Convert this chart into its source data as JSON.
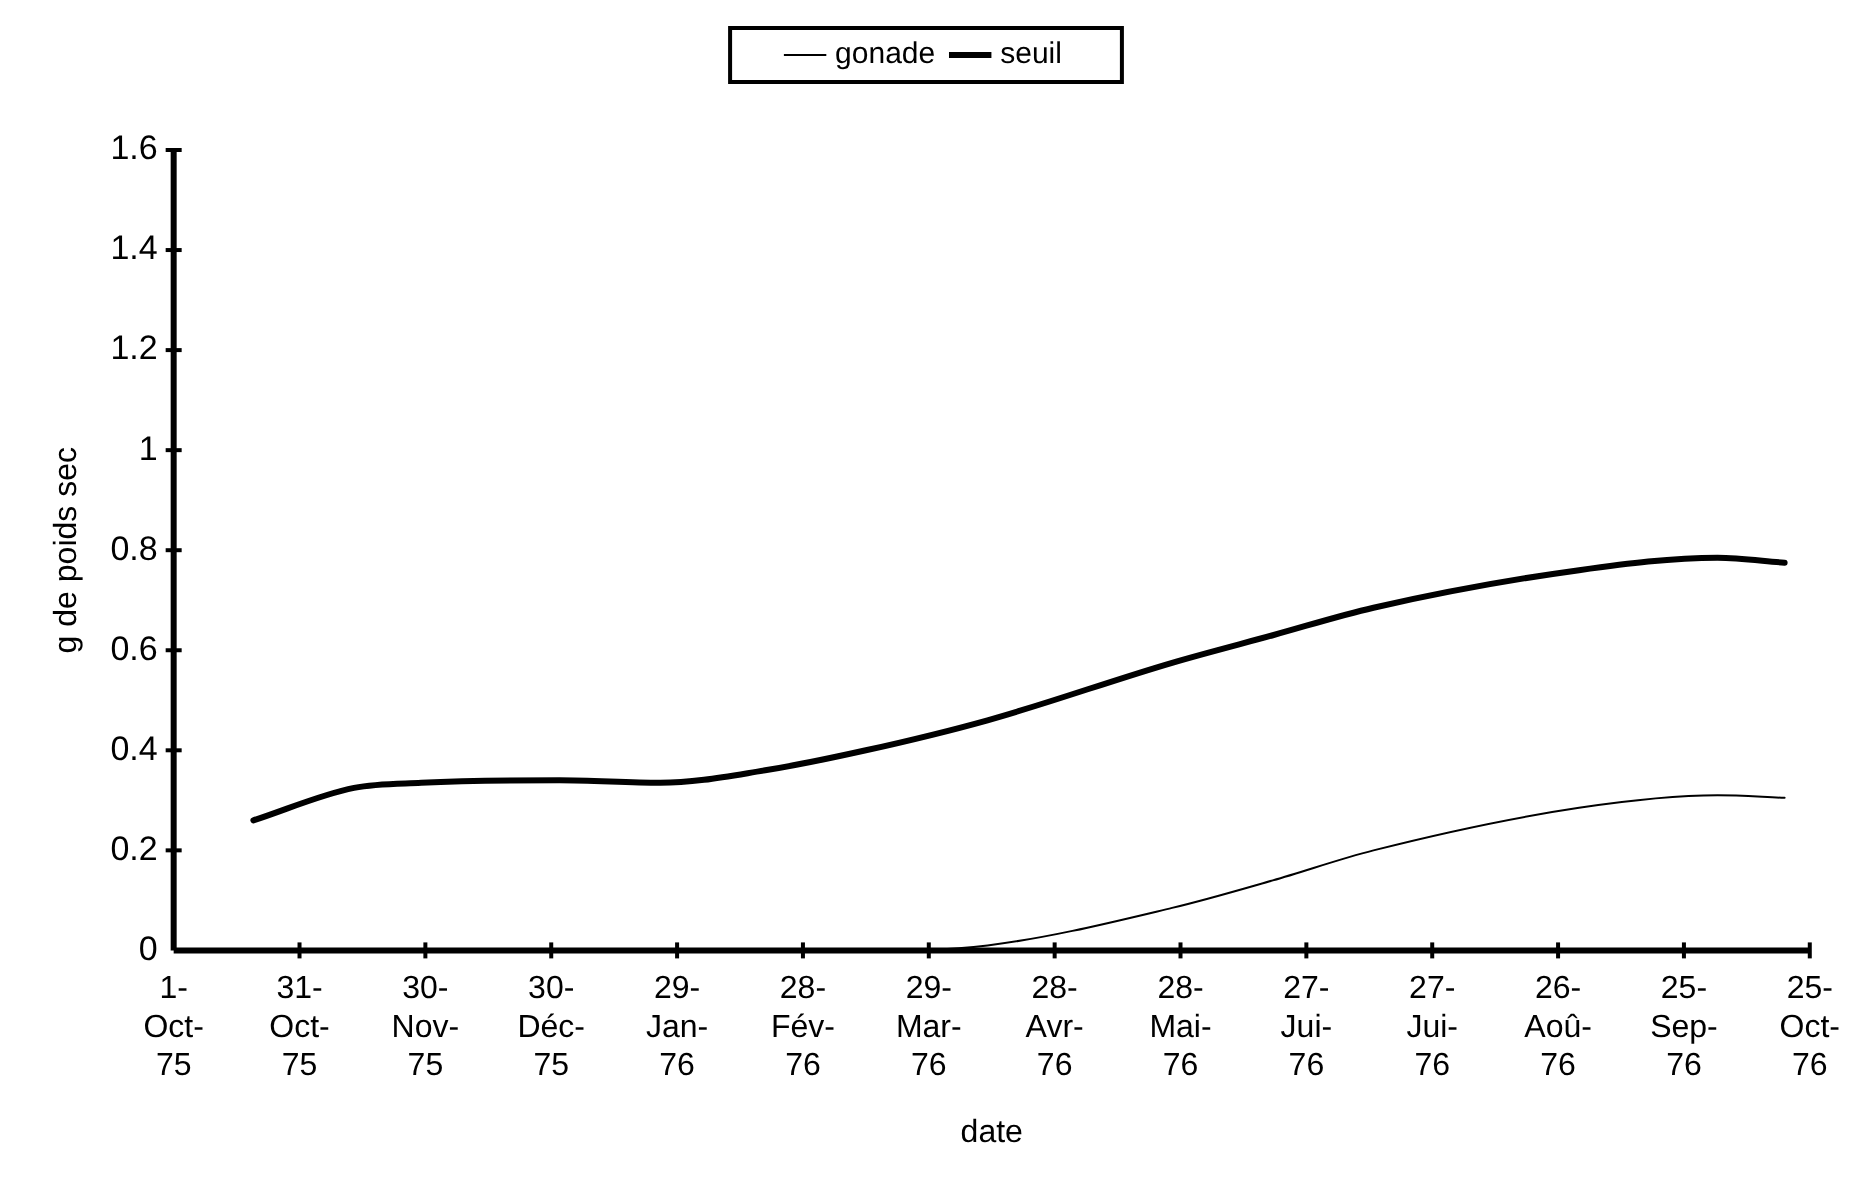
{
  "chart_data": {
    "type": "line",
    "xlabel": "date",
    "ylabel": "g de poids sec",
    "x": [
      "1975-10-20",
      "1975-11-13",
      "1975-11-29",
      "1976-01-01",
      "1976-01-25",
      "1976-02-19",
      "1976-03-14",
      "1976-04-12",
      "1976-05-26",
      "1976-06-19",
      "1976-07-13",
      "1976-08-31",
      "1976-10-03",
      "1976-10-19"
    ],
    "series": [
      {
        "name": "gonade",
        "color": "#000000",
        "line_style": "solid",
        "values": [
          0,
          0,
          0,
          0,
          0,
          0,
          0,
          0.01,
          0.085,
          0.14,
          0.2,
          0.285,
          0.31,
          0.305
        ]
      },
      {
        "name": "seuil",
        "color": "#000000",
        "line_style": "solid",
        "values": [
          0.26,
          0.325,
          0.335,
          0.34,
          0.335,
          0.36,
          0.4,
          0.46,
          0.575,
          0.63,
          0.685,
          0.76,
          0.785,
          0.775
        ]
      }
    ],
    "xlim": [
      "1975-10-01",
      "1976-10-25"
    ],
    "xticks": [
      {
        "value": "1975-10-01",
        "label": "1-Oct-75"
      },
      {
        "value": "1975-10-31",
        "label": "31-Oct-75"
      },
      {
        "value": "1975-11-30",
        "label": "30-Nov-75"
      },
      {
        "value": "1975-12-30",
        "label": "30-Déc-75"
      },
      {
        "value": "1976-01-29",
        "label": "29-Jan-76"
      },
      {
        "value": "1976-02-28",
        "label": "28-Fév-76"
      },
      {
        "value": "1976-03-29",
        "label": "29-Mar-76"
      },
      {
        "value": "1976-04-28",
        "label": "28-Avr-76"
      },
      {
        "value": "1976-05-28",
        "label": "28-Mai-76"
      },
      {
        "value": "1976-06-27",
        "label": "27-Jui-76"
      },
      {
        "value": "1976-07-27",
        "label": "27-Jui-76"
      },
      {
        "value": "1976-08-26",
        "label": "26-Aoû-76"
      },
      {
        "value": "1976-09-25",
        "label": "25-Sep-76"
      },
      {
        "value": "1976-10-25",
        "label": "25-Oct-76"
      }
    ],
    "ylim": [
      0,
      1.6
    ],
    "yticks": [
      0,
      0.2,
      0.4,
      0.6,
      0.8,
      1,
      1.2,
      1.4,
      1.6
    ],
    "grid": false,
    "legend": "top",
    "marker": "none"
  }
}
